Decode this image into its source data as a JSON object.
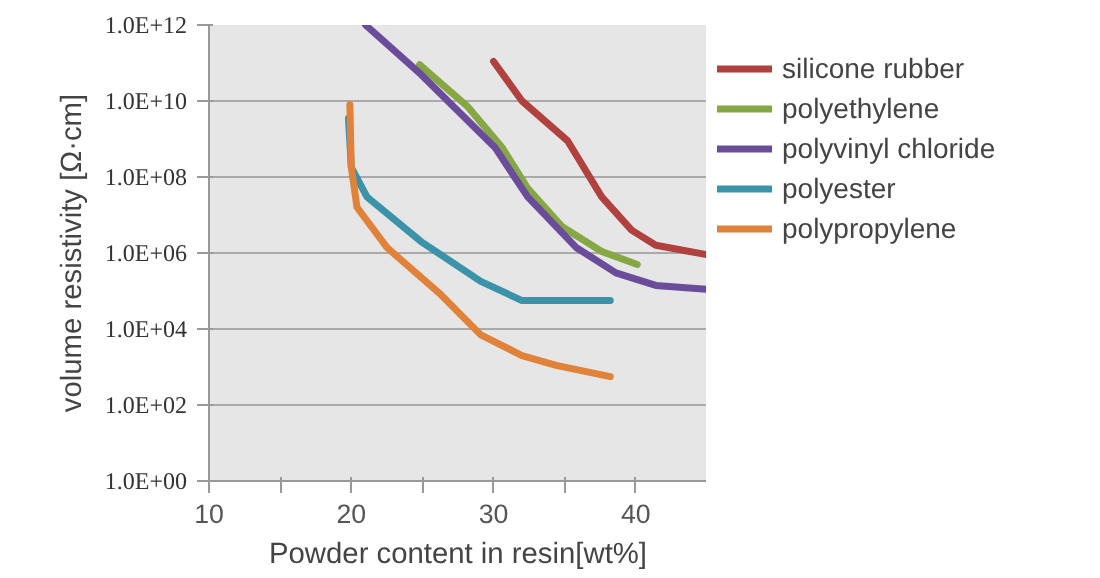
{
  "chart_data": {
    "type": "line",
    "xlabel": "Powder content in resin[wt%]",
    "ylabel": "volume resistivity [Ω·cm]",
    "xlim": [
      10,
      45
    ],
    "xticks": [
      10,
      {
        "value": 15,
        "label": null
      },
      20,
      {
        "value": 25,
        "label": null
      },
      30,
      {
        "value": 35,
        "label": null
      },
      40,
      {
        "value": 45,
        "label": null
      }
    ],
    "ylim": [
      1,
      1000000000000.0
    ],
    "yticks": [
      {
        "value": 1,
        "label": "1.0E+00"
      },
      {
        "value": 100,
        "label": "1.0E+02"
      },
      {
        "value": 10000,
        "label": "1.0E+04"
      },
      {
        "value": 1000000,
        "label": "1.0E+06"
      },
      {
        "value": 100000000,
        "label": "1.0E+08"
      },
      {
        "value": 10000000000,
        "label": "1.0E+10"
      },
      {
        "value": 1000000000000,
        "label": "1.0E+12"
      }
    ],
    "log": "y",
    "grid": "y",
    "legend": "right",
    "series": [
      {
        "name": "silicone rubber",
        "color": "#b0413e",
        "x": [
          30,
          32,
          35.2,
          37.6,
          39.7,
          41.4,
          45
        ],
        "values": [
          110000000000.0,
          10000000000.0,
          900000000.0,
          30000000.0,
          4000000.0,
          1600000.0,
          900000.0
        ]
      },
      {
        "name": "polyethylene",
        "color": "#86a844",
        "x": [
          24.8,
          28.2,
          30.6,
          32.4,
          34.8,
          37.6,
          40.1
        ],
        "values": [
          90000000000.0,
          7000000000.0,
          600000000.0,
          50000000.0,
          5000000.0,
          1100000.0,
          500000.0
        ]
      },
      {
        "name": "polyvinyl chloride",
        "color": "#6b4c9a",
        "x": [
          21,
          24.9,
          30.1,
          32.4,
          35.8,
          38.6,
          41.4,
          45
        ],
        "values": [
          1000000000000.0,
          50000000000.0,
          600000000.0,
          30000000.0,
          1400000.0,
          300000.0,
          140000.0,
          110000.0
        ]
      },
      {
        "name": "polyester",
        "color": "#3a93a8",
        "x": [
          19.8,
          20,
          21.1,
          24.9,
          29.1,
          32,
          34.4,
          38.2
        ],
        "values": [
          3500000000.0,
          180000000.0,
          30000000.0,
          2000000.0,
          180000.0,
          56000.0,
          56000.0,
          56000.0
        ]
      },
      {
        "name": "polypropylene",
        "color": "#e0823a",
        "x": [
          19.9,
          20,
          20.4,
          22.5,
          26.3,
          29.1,
          32,
          34.4,
          38.2
        ],
        "values": [
          8000000000.0,
          180000000.0,
          16000000.0,
          1400000.0,
          80000.0,
          7000.0,
          2000.0,
          1100.0,
          560.0
        ]
      }
    ]
  }
}
